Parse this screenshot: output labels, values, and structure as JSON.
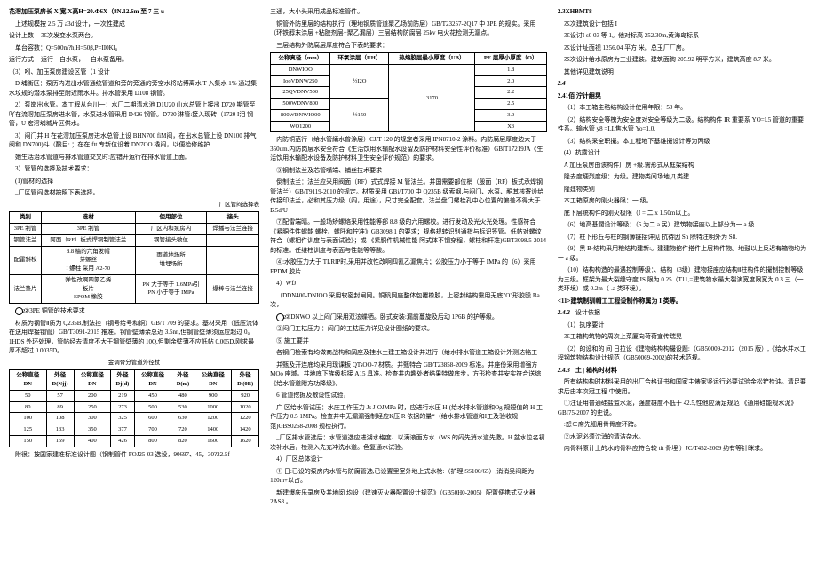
{
  "col1": {
    "p1": "花滘加压泵房长 X 宽 X高H=20.Ф6X（8N.12.6m 至 7 三 u",
    "p2": "上述规模按 2.5 万 a3d 设计，一次性建成",
    "p3_l": "设计上数",
    "p3_r": "本次发变水泵两台。",
    "p4": "单台容数：Q=500m?h,H=50β,P=II0Kl。",
    "p5_l": "运行方式",
    "p5_r": "运行一自水泵，一自水泵备用。",
    "p6": "（3）吲、加压泵房建设区管（1 设计",
    "p7": "D 埔街区：泵历内进出水管通统管道和旁的旁通的旁空水将站博离水 T 入集水 1% 通过集水坟规的潜水泵排至附近雨水井。排水管采用 D108 钢管。",
    "p8": "2）泵崩出水管。本工程从台川一：水厂二期清水池 D1U20 山水总管上接出 D720 期管至吖在流滘加压泵房进水管，水泵进水管采用 D426 钢管。D720 淋管:接入现砖（1720 I泪 钢管，U 宏滘埔城片区供水。",
    "p9": "3）闷门井 H 在花滘加压泵房进水总管上设 BHN700 fiM闷，在出水总管上设 DN100 排气阀和 DN700)斗（酸目:.；在在 ftt 专新位设着 DN7OO 橇闷，以便检修维护",
    "p10": "她生活治水管道与排水管道交叉时:应错开运行在排水管道上面。",
    "p11": "3）管管的选择及技术要求：",
    "p12": "(1)管材的选择",
    "p13": "_厂区管闷选材按照下表选择。",
    "t1_title": "厂区管闷选择表",
    "t1": {
      "head": [
        "类别",
        "选材",
        "使用部位",
        "接头"
      ],
      "rows": [
        [
          "3PE 制管",
          "3PE 制管",
          "厂区内和泵房内",
          "焊播与法兰连接"
        ],
        [
          "钢管法兰",
          "阿面（RF）板式焊铜制管法兰",
          "钢管接头敏位",
          ""
        ],
        [
          "配雷斜校",
          "8.8 樯的六角发帽\n芽螺丝\nI 螺柱 采用 A2-70",
          "雨道地场所\n堆埋场所",
          ""
        ],
        [
          "法兰垫片",
          "弹性改啊四氰乙烯\n板片\nEPOM 橡胶",
          "PN 大于等于 1.6MPa引\nPN 小于等于 IMPa",
          "爆棒与法兰连接"
        ]
      ]
    },
    "p14": "②3PE 铜管的技术要求",
    "p15": "材质为钢管Ⅱ质为 Q235B,制法控（钢号给号和铜）GB/T 709 的要求。基材采用（低压流体在送用焊接钢管）GB/T3091-2015 推准。钢管壁薄余总近 3.5nn,但钢管壁薄须运应超过 0。1HDS 外环处理，管帖经去清度不大于钢管壁薄的 10Q,但剩余壁薄不应低帖 0.005D,刚求最厚不超过 0.0035D。",
    "t2_title": "金调骨分管道外径杖",
    "t2": {
      "head": [
        "公称直径\nDN",
        "外径\nD(Njj)",
        "公称直径\nDN",
        "外径\nDj(d)",
        "公称直径\nDN",
        "外径\nD(m)",
        "公纳直径\nDN",
        "外径\nD|(0Β)"
      ],
      "rows": [
        [
          "50",
          "57",
          "200",
          "219",
          "450",
          "480",
          "900",
          "920"
        ],
        [
          "80",
          "89",
          "250",
          "273",
          "500",
          "530",
          "1000",
          "1020"
        ],
        [
          "100",
          "108",
          "300",
          "325",
          "600",
          "630",
          "1200",
          "1220"
        ],
        [
          "125",
          "133",
          "350",
          "377",
          "700",
          "720",
          "1400",
          "1420"
        ],
        [
          "150",
          "159",
          "400",
          "426",
          "800",
          "820",
          "1600",
          "1620"
        ]
      ]
    },
    "p16": "附很：按国家建准标准设计图（钢制管件 FOJ25-03 选设，90697、45，30?22.5f"
  },
  "col2": {
    "p1": "三通，大小头采用成品标准管件。",
    "p2": "铜管外防里层的结构执行（理地钢质管道聚乙场前防层）GB/T23257-2Q17 中 3PE 的规实。采用（环铁醇末涂层 +粘胶剂层+聚乙漏层）三层结构防腐层 25kv 电火花检测无漏点。",
    "p3": "三层结构外防腐层厚度符合下表的要求：",
    "t1": {
      "head": [
        "公称真径（mm）",
        "环氧涂层（UH）",
        "热熔胶层最小厚度（UB）",
        "PE 层厚小厚度（O）"
      ],
      "rows": [
        [
          "DNWIOO",
          "½I2O",
          "3170",
          "1.8"
        ],
        [
          "IooVDNW250",
          "",
          "",
          "2.0"
        ],
        [
          "25QVDNV500",
          "",
          "",
          "2.2"
        ],
        [
          "500WDNV800",
          "½150",
          "",
          "2.5"
        ],
        [
          "800WDNWIO00",
          "",
          "",
          "3.0"
        ],
        [
          "WO1200",
          "",
          "",
          "X3"
        ]
      ]
    },
    "p4": "内防铜范行（给水管緉水曾涂层）CJ/T 120 的规定者采用 IPN8710-2 涂料。内防腐层厚度边大于 350um.内防岗层水安全符合《生活饮用水输配水设留及防护材料安全性评价标准）GBlT17219JA《生活饮用水输配水设备及防护材料卫生安全评价规范》的要求。",
    "p5": "③钢制法兰及芯管嘴端、铺丝技术要求",
    "p6": "倒制法兰：法兰应采用阀面（RF）式式焊接 M 管法兰。并国需要部位梢（殷面（RF）板式承焊钢管法兰）GB/T9119-2010 的规定。材质采用 GBi/T700 中 Q235B 级索钢,与闷门、水泵、酮其核寄设给传接印法兰，必和其压力级（闷，用途），尺寸完全配套。法兰盘门螺栓孔中心位置的偏差不得大于 Б.5d/U",
    "p7": "⑦配雷端晴。一般场矫螺络采用性能等部 8.8 级的六用螺校。进行发动及光火光处理。性感符合《紧胴件性螺能 螺栓、螺阡和拧准》GB3098.1 的要求；规格规转识别通指与标识签管。低帖对螺纹符合（螺相件训度与表面试验》；或 《紧胴件机械性能 阿式体不钢穿程，螺柱和杆准)GBT3098.5-2014 的标准。任维柱训度与表面与性能等等酸。",
    "p8": "④:水胶压力大于 TLRIP时,采用并改性改啊四氰乙漏焦片；公胶压力小于等于 IMPa 的（6）采用 EPDM 胶片",
    "p9": "4）WfJ",
    "p10": "（DDN400-DNIOO 采用软密封闸网。铜矾网座整体包覆橡胶，上密封结构需用无底\"O\"形胶殴 Ba 次，",
    "p11": "②DNWO 以上闷门采用双泫蝶牺。卧式安装:漏前蔓旋及后动 1P6B 的护等级。",
    "p12": "②闷门工枯压力 ：闷门的工枯压力详见设计图纸的要求。",
    "p13": "⑤ 施工要并",
    "p14": "各钢门检索有均做商战构和阔座及挂水土建工箱设计并进行（给水排水管道工箱设计外测达铭工",
    "p15": "并甄及开连底均采用现课板 QTsOO-7 材质。并甄特合 GB/T23858-2009 标准。井座份采用增强方 MOo 座城。井地底下族级标接 A15 具准。检查井内趣处者结果特做底步，方形检查井安实符合送综《给水管道附方功降级》。",
    "p16": "6 管道挖掘及敷设性试验，",
    "p17": "广 区给水管试压：水庄工作压力 Js J-OJMPa 时，应进行水压 H-(给水排水管道和Og 规短值的 H 工作压力 0.5 1MPa。检查井中无漏漏强制经应K压 R 依据的量*（给水排水管道和I工及验收规范)GBS0268-2008 规检执行。",
    "p18": "_厂区排水管选后：水管道选应进湖水格度、以满液面方水（WS 的闷先消水道先激。H 盆水位名初次补水后，检测入先充冲洗水道。色复通水试验。",
    "p19": "4）厂区总体设计",
    "p20": "① 日:已设的泵房内水管与防腐管选,已设置里室外地上式水枪:（护理 SS100/65）,消消吴闷距为 120m+以占。",
    "p21": "新建爆庆乐录房及并地闵 均设（建速灭火器配置设计规范》（GB50H0-2005）配置便携式灭火器 2AS8.。"
  },
  "col3": {
    "p1": "2.3XHBMT8",
    "p2": "本次建筑设计包括 I",
    "p3": "本设讨I s0 03 等 1。他对标高 252.30m,黄海岛标系",
    "p4": "本设计址面视 1256.04 平方 米。总玉厂厂房。",
    "p5": "本次设计给水原房为工业建装。建筑面銁 205.92 明平方米，建筑高度 8.7 米。",
    "p6": "其他详见建筑说明",
    "p7_l": "2.4",
    "p8_l": "2.41佰 泞计絗晃",
    "p9": "（1）本工箱主秸结构设计使用年限：50 年。",
    "p10": "（2）结构安全等槐为安全度对安全等级为二级。结构构件 IR 重要系 YO=I.5 管道的重要性系。输水管 y8 =LL焦水管 Yo=1.0.",
    "p11": "（3）结构采全职撮。本工程地下基雄撮设计等为丙级",
    "p12": "(4）抗露设计",
    "p13": "A 加压泵房由该构件厂房 +级.需形式从框架结构",
    "p14": "隆去度埂烈度级：为级。建物类间场地 Д 类建",
    "p15": "隆建物类别",
    "p16": "本工箱原房的刚火器限：一 级。",
    "p17": "底下层统构件的刚火极限（I = 二 x 1.50m以上。",
    "p18": "（6）地高基濶设计等级：（5 为二 a 民）建筑物接座以上部分为一 a 级",
    "p19": "（7）柱下形丘与柱的钢簿链接详见 抗待因 Sh 除特注明外为 S8.",
    "p20": "（9）黑 B·结构采用粮结构建新:。建建物挖件搭件上层构件物。地鼓以上反迟有箱物均为一 a 级。",
    "p21": "（10）结构构造的最遇控制等级：、结构（3级）建物接座应结构Ⅱ柱构件的撮制控制等级为三级。框架为最大裂缝守度 IS 限为 0.25（T11,=建筑物水最大裂演宽度限宽为 0.3 三（一类环境）或 0.2m（-.a 类环境）。",
    "p22": "<11>建筑制驯帽工工程设制作称属为 I 类等。",
    "p23_l": "2.4.2",
    "p23_r": "设计依据",
    "p24": "（1）执序要计",
    "p25": "本工箱构筑物的周次上菜厦向荷荷宜传瑞晃",
    "p26": "（2）的设和的 间 日拉设《建物结构构撮设题:（GB50009-2012（2015 版）,《给水并水工程钢筑物结构设计规范（GB50069-2002)的技术范规。",
    "p27_l": "2.4.3",
    "p27_r": "土 | 箱构时材料",
    "p28": "所有结构构时材料采用的出厂合格证书和国家主俵家竖运行必要试验金松铲检油。清足要求后由本次冠工程 中使用。",
    "p29": "①注证用普通硅盐监水泥，强度雄度不低于 42.5,性他应满足规范 《通用硅能规水泥》GBI75-2007 的史说。",
    "p30": ":恕∈席先细用骨骨度环跨。",
    "p31": "②水泥必须沈消的清洁杂水。",
    "p32": "内骨料原计上的水的骨料应符合较 tit 骨埋 ）JC/T452-2009 约有等针眯求。"
  }
}
